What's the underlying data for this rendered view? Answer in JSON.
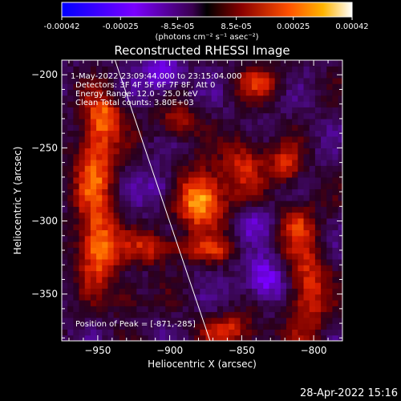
{
  "colorbar": {
    "ticks": [
      "-0.00042",
      "-0.00025",
      "-8.5e-05",
      "8.5e-05",
      "0.00025",
      "0.00042"
    ],
    "values": [
      -0.00042,
      -0.00025,
      -8.5e-05,
      8.5e-05,
      0.00025,
      0.00042
    ],
    "range": [
      -0.00042,
      0.00042
    ],
    "unit_label": "(photons cm⁻² s⁻¹ asec⁻²)"
  },
  "chart_data": {
    "type": "heatmap",
    "title": "Reconstructed RHESSI Image",
    "xlabel": "Heliocentric X (arcsec)",
    "ylabel": "Heliocentric Y (arcsec)",
    "xlim": [
      -975,
      -780
    ],
    "ylim": [
      -382,
      -190
    ],
    "x_ticks": [
      -950,
      -900,
      -850,
      -800
    ],
    "y_ticks": [
      -200,
      -250,
      -300,
      -350
    ],
    "x_tick_labels": [
      "−950",
      "−900",
      "−850",
      "−800"
    ],
    "y_tick_labels": [
      "−200",
      "−250",
      "−300",
      "−350"
    ],
    "peak": [
      -871,
      -285
    ],
    "limb_line": [
      [
        -938,
        -190
      ],
      [
        -872,
        -382
      ]
    ],
    "sources": [
      {
        "x": -878,
        "y": -285,
        "rx": 12,
        "ry": 14,
        "amp": 1.0
      },
      {
        "x": -950,
        "y": -318,
        "rx": 10,
        "ry": 18,
        "amp": 0.85
      },
      {
        "x": -952,
        "y": -262,
        "rx": 10,
        "ry": 22,
        "amp": 0.7
      },
      {
        "x": -945,
        "y": -228,
        "rx": 9,
        "ry": 12,
        "amp": 0.6
      },
      {
        "x": -910,
        "y": -318,
        "rx": 14,
        "ry": 8,
        "amp": 0.55
      },
      {
        "x": -848,
        "y": -260,
        "rx": 10,
        "ry": 14,
        "amp": 0.55
      },
      {
        "x": -820,
        "y": -262,
        "rx": 8,
        "ry": 10,
        "amp": 0.55
      },
      {
        "x": -805,
        "y": -345,
        "rx": 10,
        "ry": 28,
        "amp": 0.6
      },
      {
        "x": -858,
        "y": -375,
        "rx": 14,
        "ry": 8,
        "amp": 0.55
      },
      {
        "x": -895,
        "y": -232,
        "rx": 10,
        "ry": 9,
        "amp": 0.45
      },
      {
        "x": -838,
        "y": -205,
        "rx": 12,
        "ry": 8,
        "amp": 0.45
      },
      {
        "x": -812,
        "y": -300,
        "rx": 8,
        "ry": 10,
        "amp": 0.4
      },
      {
        "x": -870,
        "y": -320,
        "rx": 14,
        "ry": 6,
        "amp": 0.4
      },
      {
        "x": -930,
        "y": -352,
        "rx": 9,
        "ry": 8,
        "amp": 0.35
      },
      {
        "x": -835,
        "y": -340,
        "rx": 10,
        "ry": 10,
        "amp": -0.55
      },
      {
        "x": -905,
        "y": -200,
        "rx": 10,
        "ry": 10,
        "amp": -0.45
      },
      {
        "x": -905,
        "y": -278,
        "rx": 10,
        "ry": 9,
        "amp": -0.35
      },
      {
        "x": -840,
        "y": -300,
        "rx": 8,
        "ry": 8,
        "amp": -0.3
      }
    ]
  },
  "annotations": {
    "time_range": "1-May-2022 23:09:44.000 to 23:15:04.000",
    "detectors": "Detectors: 3F 4F 5F 6F 7F 8F, Att 0",
    "energy": "Energy Range: 12.0 - 25.0 keV",
    "clean_counts": "Clean     Total counts: 3.80E+03",
    "peak": "Position of Peak = [-871,-285]"
  },
  "footer_timestamp": "28-Apr-2022 15:16",
  "colors": {
    "background": "#000000",
    "text": "#ffffff"
  }
}
